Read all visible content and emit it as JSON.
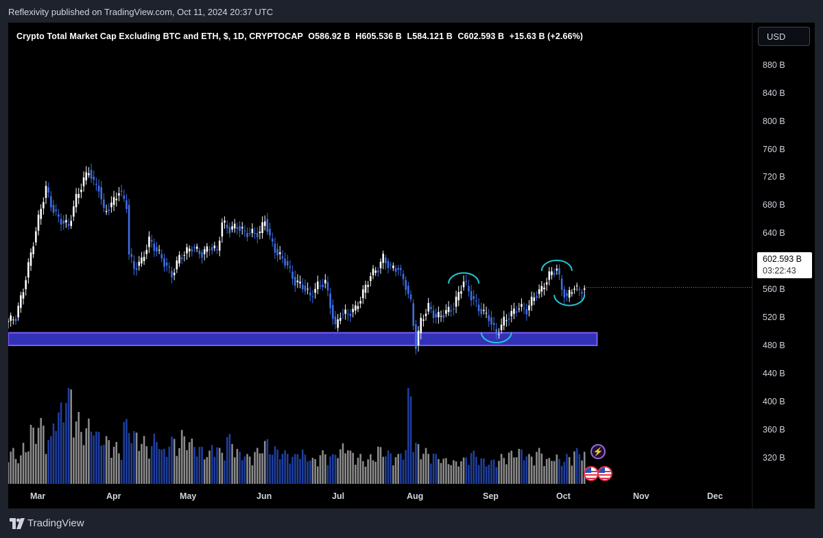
{
  "header": {
    "published_text": "Reflexivity published on TradingView.com, Oct 11, 2024 20:37 UTC"
  },
  "legend": {
    "title": "Crypto Total Market Cap Excluding BTC and ETH, $, 1D, CRYPTOCAP",
    "open": "O586.92 B",
    "high": "H605.536 B",
    "low": "L584.121 B",
    "close": "C602.593 B",
    "change": "+15.63 B (+2.66%)"
  },
  "currency_button": "USD",
  "price_tag": {
    "price": "602.593 B",
    "countdown": "03:22:43"
  },
  "footer": {
    "brand": "TradingView"
  },
  "colors": {
    "background": "#000000",
    "frame": "#1e222d",
    "up_candle": "#ffffff",
    "down_candle": "#3d6fe8",
    "volume_up": "#8c8c8c",
    "volume_down": "#1f3fa0",
    "support_zone": "#3b3bd6",
    "annotation": "#25c6d6",
    "text": "#d1d4dc"
  },
  "icons": {
    "event_flash": "lightning-icon",
    "event_flags": "us-flag-icon"
  },
  "chart_data": {
    "type": "candlestick",
    "title": "Crypto Total Market Cap Excluding BTC and ETH, $, 1D, CRYPTOCAP",
    "y_axis": {
      "unit": "B",
      "ticks": [
        "880 B",
        "840 B",
        "800 B",
        "760 B",
        "720 B",
        "680 B",
        "640 B",
        "600 B",
        "560 B",
        "520 B",
        "480 B",
        "440 B",
        "400 B",
        "360 B",
        "320 B"
      ],
      "tick_values": [
        880,
        840,
        800,
        760,
        720,
        680,
        640,
        600,
        560,
        520,
        480,
        440,
        400,
        360,
        320
      ],
      "range": [
        284,
        918
      ]
    },
    "x_axis": {
      "ticks": [
        "Mar",
        "Apr",
        "May",
        "Jun",
        "Jul",
        "Aug",
        "Sep",
        "Oct",
        "Nov",
        "Dec"
      ],
      "tick_dates": [
        "2024-03-01",
        "2024-04-01",
        "2024-05-01",
        "2024-06-01",
        "2024-07-01",
        "2024-08-01",
        "2024-09-01",
        "2024-10-01",
        "2024-11-01",
        "2024-12-01"
      ],
      "range": [
        "2024-02-25",
        "2024-12-17"
      ]
    },
    "series": [
      {
        "type": "price",
        "points": [
          [
            "2024-02-25",
            555
          ],
          [
            "2024-02-28",
            560
          ],
          [
            "2024-03-02",
            600
          ],
          [
            "2024-03-05",
            650
          ],
          [
            "2024-03-08",
            700
          ],
          [
            "2024-03-11",
            745
          ],
          [
            "2024-03-13",
            720
          ],
          [
            "2024-03-16",
            700
          ],
          [
            "2024-03-20",
            690
          ],
          [
            "2024-03-23",
            730
          ],
          [
            "2024-03-26",
            755
          ],
          [
            "2024-03-28",
            770
          ],
          [
            "2024-03-30",
            750
          ],
          [
            "2024-04-01",
            745
          ],
          [
            "2024-04-03",
            710
          ],
          [
            "2024-04-06",
            720
          ],
          [
            "2024-04-09",
            740
          ],
          [
            "2024-04-12",
            720
          ],
          [
            "2024-04-13",
            650
          ],
          [
            "2024-04-15",
            630
          ],
          [
            "2024-04-18",
            640
          ],
          [
            "2024-04-21",
            670
          ],
          [
            "2024-04-25",
            650
          ],
          [
            "2024-04-30",
            620
          ],
          [
            "2024-05-03",
            645
          ],
          [
            "2024-05-08",
            660
          ],
          [
            "2024-05-12",
            650
          ],
          [
            "2024-05-15",
            660
          ],
          [
            "2024-05-18",
            655
          ],
          [
            "2024-05-20",
            695
          ],
          [
            "2024-05-23",
            685
          ],
          [
            "2024-05-26",
            690
          ],
          [
            "2024-05-29",
            680
          ],
          [
            "2024-06-01",
            680
          ],
          [
            "2024-06-04",
            680
          ],
          [
            "2024-06-06",
            700
          ],
          [
            "2024-06-08",
            672
          ],
          [
            "2024-06-11",
            650
          ],
          [
            "2024-06-14",
            640
          ],
          [
            "2024-06-18",
            610
          ],
          [
            "2024-06-21",
            605
          ],
          [
            "2024-06-24",
            590
          ],
          [
            "2024-06-27",
            605
          ],
          [
            "2024-06-30",
            610
          ],
          [
            "2024-07-04",
            545
          ],
          [
            "2024-07-06",
            565
          ],
          [
            "2024-07-09",
            565
          ],
          [
            "2024-07-12",
            572
          ],
          [
            "2024-07-15",
            595
          ],
          [
            "2024-07-18",
            620
          ],
          [
            "2024-07-21",
            630
          ],
          [
            "2024-07-23",
            645
          ],
          [
            "2024-07-26",
            630
          ],
          [
            "2024-07-29",
            630
          ],
          [
            "2024-08-01",
            605
          ],
          [
            "2024-08-03",
            580
          ],
          [
            "2024-08-05",
            520
          ],
          [
            "2024-08-07",
            555
          ],
          [
            "2024-08-10",
            575
          ],
          [
            "2024-08-13",
            560
          ],
          [
            "2024-08-16",
            565
          ],
          [
            "2024-08-20",
            575
          ],
          [
            "2024-08-24",
            612
          ],
          [
            "2024-08-27",
            590
          ],
          [
            "2024-08-30",
            572
          ],
          [
            "2024-09-03",
            560
          ],
          [
            "2024-09-06",
            535
          ],
          [
            "2024-09-09",
            555
          ],
          [
            "2024-09-12",
            565
          ],
          [
            "2024-09-15",
            575
          ],
          [
            "2024-09-18",
            570
          ],
          [
            "2024-09-21",
            590
          ],
          [
            "2024-09-24",
            600
          ],
          [
            "2024-09-27",
            620
          ],
          [
            "2024-09-30",
            630
          ],
          [
            "2024-10-02",
            600
          ],
          [
            "2024-10-04",
            588
          ],
          [
            "2024-10-07",
            605
          ],
          [
            "2024-10-09",
            596
          ],
          [
            "2024-10-11",
            602.593
          ]
        ]
      },
      {
        "type": "volume",
        "values_relative": [
          0.3,
          0.25,
          0.35,
          0.5,
          0.55,
          0.4,
          0.62,
          0.7,
          0.85,
          0.6,
          0.5,
          0.55,
          0.45,
          0.4,
          0.35,
          0.3,
          0.55,
          0.45,
          0.4,
          0.35,
          0.42,
          0.3,
          0.4,
          0.35,
          0.45,
          0.38,
          0.32,
          0.28,
          0.35,
          0.3,
          0.42,
          0.3,
          0.28,
          0.25,
          0.3,
          0.38,
          0.32,
          0.3,
          0.28,
          0.25,
          0.3,
          0.25,
          0.22,
          0.28,
          0.25,
          0.3,
          0.35,
          0.28,
          0.25,
          0.22,
          0.25,
          0.32,
          0.28,
          0.25,
          0.3,
          0.95,
          0.35,
          0.3,
          0.28,
          0.25,
          0.22,
          0.2,
          0.22,
          0.25,
          0.28,
          0.22,
          0.2,
          0.22,
          0.25,
          0.28,
          0.3,
          0.28,
          0.25,
          0.3,
          0.22,
          0.25,
          0.22,
          0.25,
          0.3,
          0.28
        ]
      }
    ],
    "support_zone": {
      "low": 520,
      "high": 538,
      "from": "2024-02-25",
      "to": "2024-10-16"
    },
    "annotations": [
      {
        "shape": "arc-top",
        "date": "2024-08-24",
        "value": 612
      },
      {
        "shape": "arc-bottom",
        "date": "2024-09-06",
        "value": 535
      },
      {
        "shape": "arc-top",
        "date": "2024-09-30",
        "value": 630
      },
      {
        "shape": "arc-bottom",
        "date": "2024-10-05",
        "value": 588
      }
    ],
    "last": {
      "open": 586.92,
      "high": 605.536,
      "low": 584.121,
      "close": 602.593,
      "change": 15.63,
      "change_pct": 2.66
    }
  }
}
